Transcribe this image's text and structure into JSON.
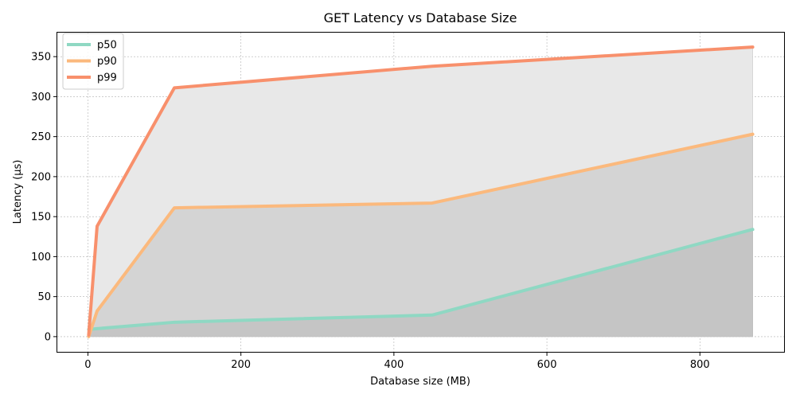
{
  "chart_data": {
    "type": "line",
    "title": "GET Latency vs Database Size",
    "xlabel": "Database size (MB)",
    "ylabel": "Latency (µs)",
    "xlim": [
      -40,
      910
    ],
    "ylim": [
      -19,
      380
    ],
    "xticks": [
      0,
      200,
      400,
      600,
      800
    ],
    "yticks": [
      0,
      50,
      100,
      150,
      200,
      250,
      300,
      350
    ],
    "grid": true,
    "legend_position": "top-left",
    "fill_colors": [
      "#c5c5c5",
      "#d4d4d4",
      "#e8e8e8"
    ],
    "series": [
      {
        "name": "p50",
        "color": "#8fd8c3",
        "x": [
          1,
          12,
          113,
          450,
          869
        ],
        "y": [
          9,
          10,
          18,
          27,
          134
        ]
      },
      {
        "name": "p90",
        "color": "#fbb97d",
        "x": [
          1,
          12,
          113,
          450,
          869
        ],
        "y": [
          0,
          32,
          161,
          167,
          253
        ]
      },
      {
        "name": "p99",
        "color": "#f8906c",
        "x": [
          1,
          12,
          113,
          450,
          869
        ],
        "y": [
          2,
          138,
          311,
          338,
          362
        ]
      }
    ]
  }
}
